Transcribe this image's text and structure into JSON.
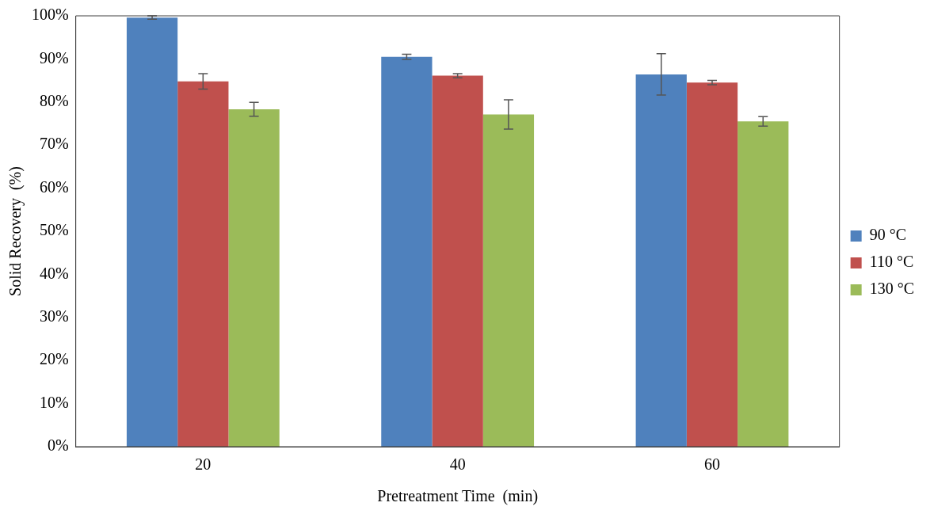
{
  "chart_data": {
    "type": "bar",
    "xlabel": "Pretreatment Time  (min)",
    "ylabel": "Solid Recovery  (%)",
    "categories": [
      "20",
      "40",
      "60"
    ],
    "series": [
      {
        "name": "90 °C",
        "color": "#4f81bd",
        "values": [
          99.6,
          90.5,
          86.4
        ],
        "errors": [
          0.4,
          0.6,
          4.8
        ]
      },
      {
        "name": "110 °C",
        "color": "#c0504d",
        "values": [
          84.8,
          86.1,
          84.5
        ],
        "errors": [
          1.8,
          0.5,
          0.5
        ]
      },
      {
        "name": "130 °C",
        "color": "#9bbb59",
        "values": [
          78.3,
          77.1,
          75.5
        ],
        "errors": [
          1.6,
          3.4,
          1.1
        ]
      }
    ],
    "ylim": [
      0,
      100
    ],
    "yticks": [
      {
        "value": 0,
        "label": "0%"
      },
      {
        "value": 10,
        "label": "10%"
      },
      {
        "value": 20,
        "label": "20%"
      },
      {
        "value": 30,
        "label": "30%"
      },
      {
        "value": 40,
        "label": "40%"
      },
      {
        "value": 50,
        "label": "50%"
      },
      {
        "value": 60,
        "label": "60%"
      },
      {
        "value": 70,
        "label": "70%"
      },
      {
        "value": 80,
        "label": "80%"
      },
      {
        "value": 90,
        "label": "90%"
      },
      {
        "value": 100,
        "label": "100%"
      }
    ],
    "grid": false,
    "legend": "right"
  }
}
